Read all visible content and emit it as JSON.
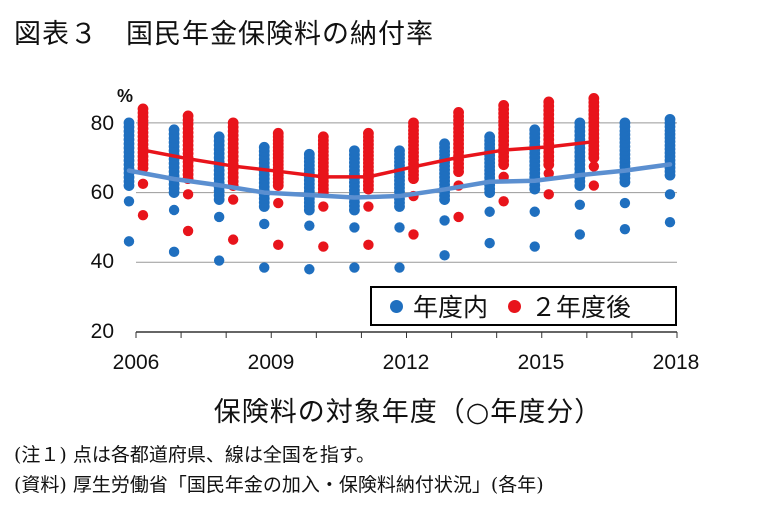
{
  "title": "図表３　国民年金保険料の納付率",
  "note1": "(注１) 点は各都道府県、線は全国を指す。",
  "note2": "(資料) 厚生労働省「国民年金の加入・保険料納付状況」(各年)",
  "chart_data": {
    "type": "scatter",
    "unit_label": "%",
    "xlabel": "保険料の対象年度（○年度分）",
    "ylabel": "",
    "x_ticks": [
      "2006",
      "2009",
      "2012",
      "2015",
      "2018"
    ],
    "y_ticks": [
      "20",
      "40",
      "60",
      "80"
    ],
    "xlim": [
      2006,
      2018
    ],
    "ylim": [
      20,
      90
    ],
    "grid": true,
    "legend_position": "bottom-right",
    "colors": {
      "within_year": "#1f6fbf",
      "two_years_later": "#e8141b",
      "within_year_line": "#5b8fd0",
      "two_years_line": "#e8141b"
    },
    "series": [
      {
        "name": "年度内",
        "x": [
          2006,
          2007,
          2008,
          2009,
          2010,
          2011,
          2012,
          2013,
          2014,
          2015,
          2016,
          2017,
          2018
        ],
        "national": [
          66.3,
          63.9,
          62.1,
          60.0,
          59.3,
          58.6,
          59.0,
          60.9,
          63.1,
          63.4,
          65.0,
          66.3,
          68.1
        ],
        "range_low": [
          62,
          60,
          58,
          56,
          55,
          55,
          56,
          58,
          60,
          61,
          62,
          63,
          65
        ],
        "range_high": [
          80,
          78,
          76,
          73,
          71,
          72,
          72,
          74,
          76,
          78,
          80,
          80,
          81
        ],
        "outliers": [
          [
            57.5,
            46
          ],
          [
            55,
            43
          ],
          [
            53,
            40.5
          ],
          [
            51,
            38.5
          ],
          [
            50.5,
            38
          ],
          [
            50,
            38.5
          ],
          [
            50,
            38.5
          ],
          [
            52,
            42
          ],
          [
            54.5,
            45.5
          ],
          [
            54.5,
            44.5
          ],
          [
            56.5,
            48
          ],
          [
            57,
            49.5
          ],
          [
            59.5,
            51.5
          ]
        ]
      },
      {
        "name": "２年度後",
        "x": [
          2006,
          2007,
          2008,
          2009,
          2010,
          2011,
          2012,
          2013,
          2014,
          2015,
          2016
        ],
        "national": [
          72.2,
          69.7,
          67.6,
          66.1,
          64.5,
          64.5,
          67.4,
          70.1,
          72.2,
          73.1,
          74.6
        ],
        "range_low": [
          67,
          64,
          62,
          62,
          60,
          61,
          64,
          66,
          68,
          68,
          70
        ],
        "range_high": [
          84,
          82,
          80,
          77,
          76,
          77,
          80,
          83,
          85,
          86,
          87
        ],
        "outliers": [
          [
            62.5,
            53.5
          ],
          [
            59.5,
            49
          ],
          [
            58,
            46.5
          ],
          [
            57,
            45
          ],
          [
            56,
            44.5
          ],
          [
            56,
            45
          ],
          [
            59,
            48
          ],
          [
            62,
            53
          ],
          [
            64.5,
            57.5
          ],
          [
            65.5,
            59.5
          ],
          [
            67.5,
            62
          ]
        ]
      }
    ]
  }
}
